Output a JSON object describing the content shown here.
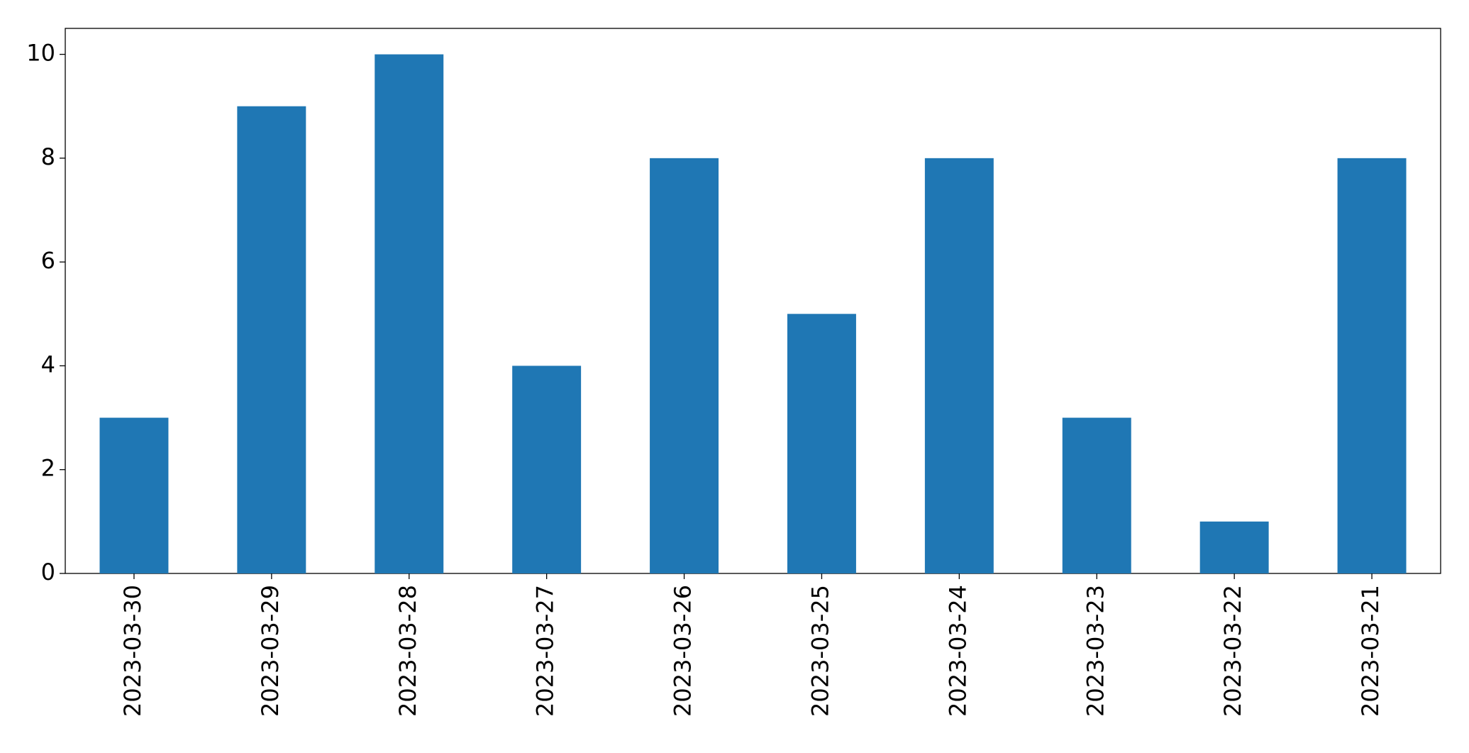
{
  "chart_data": {
    "type": "bar",
    "categories": [
      "2023-03-30",
      "2023-03-29",
      "2023-03-28",
      "2023-03-27",
      "2023-03-26",
      "2023-03-25",
      "2023-03-24",
      "2023-03-23",
      "2023-03-22",
      "2023-03-21"
    ],
    "values": [
      3,
      9,
      10,
      4,
      8,
      5,
      8,
      3,
      1,
      8
    ],
    "color": "#1f77b4",
    "ylim": [
      0,
      10.5
    ],
    "yticks": [
      0,
      2,
      4,
      6,
      8,
      10
    ],
    "grid": false
  }
}
